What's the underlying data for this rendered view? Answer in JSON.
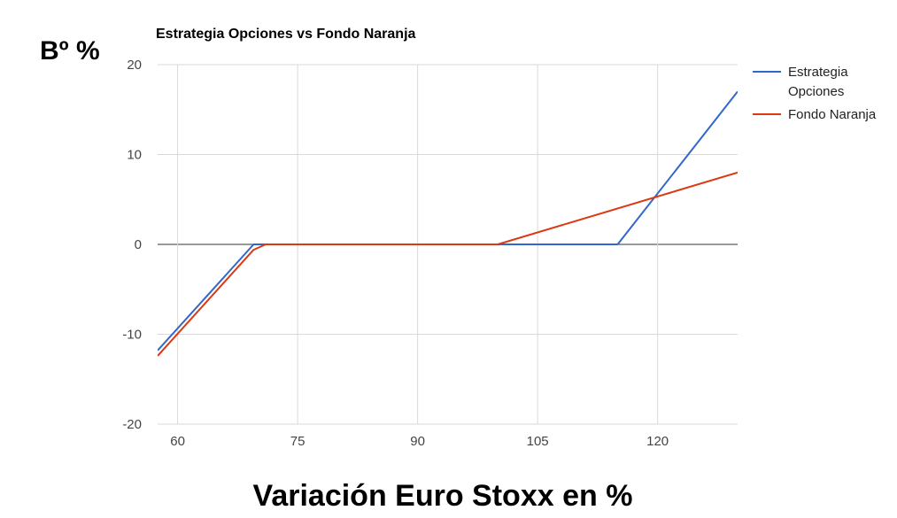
{
  "chart_data": {
    "type": "line",
    "title": "Estrategia Opciones vs Fondo Naranja",
    "xlabel": "Variación Euro Stoxx en %",
    "ylabel": "Bº %",
    "xlim": [
      57.5,
      130
    ],
    "ylim": [
      -20,
      20
    ],
    "x_ticks": [
      60,
      75,
      90,
      105,
      120
    ],
    "y_ticks": [
      20,
      10,
      0,
      -10,
      -20
    ],
    "grid": true,
    "legend_position": "right",
    "series": [
      {
        "name_lines": [
          "Estrategia",
          "Opciones"
        ],
        "color": "#3366cc",
        "points": [
          [
            57.5,
            -11.8
          ],
          [
            69.5,
            0
          ],
          [
            115,
            0
          ],
          [
            130,
            17
          ]
        ]
      },
      {
        "name_lines": [
          "Fondo Naranja"
        ],
        "color": "#dc3912",
        "points": [
          [
            57.5,
            -12.4
          ],
          [
            69.5,
            -0.6
          ],
          [
            71,
            0
          ],
          [
            100,
            0
          ],
          [
            130,
            8
          ]
        ]
      }
    ]
  }
}
